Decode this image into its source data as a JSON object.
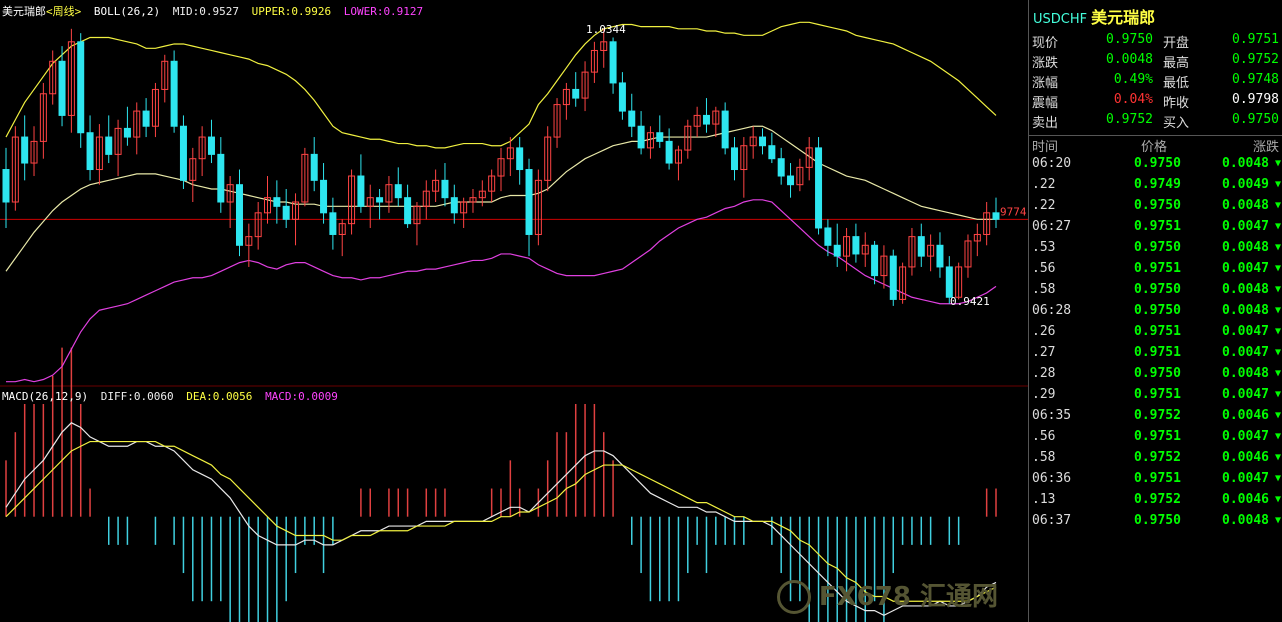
{
  "colors": {
    "up": "#ff4444",
    "down": "#2ee6f0",
    "mid": "#e8e8a8",
    "upper": "#f0f040",
    "lower": "#e040e0",
    "diff": "#e8e8e8",
    "dea": "#f0f040",
    "macd_pos": "#e04040",
    "macd_neg": "#40d0e0"
  },
  "header_main": {
    "symbol": "美元瑞郎",
    "period": "<周线>",
    "boll": "BOLL(26,2)",
    "mid": "MID:0.9527",
    "upper": "UPPER:0.9926",
    "lower": "LOWER:0.9127"
  },
  "header_macd": {
    "name": "MACD(26,12,9)",
    "diff": "DIFF:0.0060",
    "dea": "DEA:0.0056",
    "macd": "MACD:0.0009"
  },
  "annotations": {
    "high": "1.0344",
    "low": "0.9421",
    "last_price": "9774"
  },
  "panel": {
    "code": "USDCHF",
    "name": "美元瑞郎",
    "stats": [
      {
        "l": "现价",
        "v": "0.9750",
        "vc": "#0f0",
        "l2": "开盘",
        "v2": "0.9751",
        "v2c": "#0f0"
      },
      {
        "l": "涨跌",
        "v": "0.0048",
        "vc": "#0f0",
        "l2": "最高",
        "v2": "0.9752",
        "v2c": "#0f0"
      },
      {
        "l": "涨幅",
        "v": "0.49%",
        "vc": "#0f0",
        "l2": "最低",
        "v2": "0.9748",
        "v2c": "#0f0"
      },
      {
        "l": "震幅",
        "v": "0.04%",
        "vc": "#f33",
        "l2": "昨收",
        "v2": "0.9798",
        "v2c": "#fff"
      },
      {
        "l": "卖出",
        "v": "0.9752",
        "vc": "#0f0",
        "l2": "买入",
        "v2": "0.9750",
        "v2c": "#0f0"
      }
    ],
    "tick_headers": [
      "时间",
      "价格",
      "涨跌"
    ],
    "ticks": [
      {
        "t": "06:20",
        "p": "0.9750",
        "c": "0.0048"
      },
      {
        "t": ".22",
        "p": "0.9749",
        "c": "0.0049"
      },
      {
        "t": ".22",
        "p": "0.9750",
        "c": "0.0048"
      },
      {
        "t": "06:27",
        "p": "0.9751",
        "c": "0.0047"
      },
      {
        "t": ".53",
        "p": "0.9750",
        "c": "0.0048"
      },
      {
        "t": ".56",
        "p": "0.9751",
        "c": "0.0047"
      },
      {
        "t": ".58",
        "p": "0.9750",
        "c": "0.0048"
      },
      {
        "t": "06:28",
        "p": "0.9750",
        "c": "0.0048"
      },
      {
        "t": ".26",
        "p": "0.9751",
        "c": "0.0047"
      },
      {
        "t": ".27",
        "p": "0.9751",
        "c": "0.0047"
      },
      {
        "t": ".28",
        "p": "0.9750",
        "c": "0.0048"
      },
      {
        "t": ".29",
        "p": "0.9751",
        "c": "0.0047"
      },
      {
        "t": "06:35",
        "p": "0.9752",
        "c": "0.0046"
      },
      {
        "t": ".56",
        "p": "0.9751",
        "c": "0.0047"
      },
      {
        "t": ".58",
        "p": "0.9752",
        "c": "0.0046"
      },
      {
        "t": "06:36",
        "p": "0.9751",
        "c": "0.0047"
      },
      {
        "t": ".13",
        "p": "0.9752",
        "c": "0.0046"
      },
      {
        "t": "06:37",
        "p": "0.9750",
        "c": "0.0048"
      }
    ],
    "arrow": "▼"
  },
  "watermark": "FX678 汇通网",
  "chart_data": {
    "type": "candlestick",
    "price_range": [
      0.875,
      1.045
    ],
    "macd_range": [
      -0.022,
      0.024
    ],
    "candles": [
      [
        0.975,
        0.985,
        0.948,
        0.96
      ],
      [
        0.96,
        0.995,
        0.956,
        0.99
      ],
      [
        0.99,
        1.0,
        0.97,
        0.978
      ],
      [
        0.978,
        0.995,
        0.972,
        0.988
      ],
      [
        0.988,
        1.015,
        0.98,
        1.01
      ],
      [
        1.01,
        1.03,
        1.005,
        1.025
      ],
      [
        1.025,
        1.032,
        0.995,
        1.0
      ],
      [
        1.0,
        1.04,
        0.992,
        1.034
      ],
      [
        1.034,
        1.038,
        0.985,
        0.992
      ],
      [
        0.992,
        1.0,
        0.97,
        0.975
      ],
      [
        0.975,
        0.996,
        0.968,
        0.99
      ],
      [
        0.99,
        1.0,
        0.978,
        0.982
      ],
      [
        0.982,
        0.998,
        0.972,
        0.994
      ],
      [
        0.994,
        1.004,
        0.986,
        0.99
      ],
      [
        0.99,
        1.006,
        0.982,
        1.002
      ],
      [
        1.002,
        1.008,
        0.99,
        0.995
      ],
      [
        0.995,
        1.015,
        0.99,
        1.012
      ],
      [
        1.012,
        1.028,
        1.006,
        1.025
      ],
      [
        1.025,
        1.03,
        0.992,
        0.995
      ],
      [
        0.995,
        1.0,
        0.966,
        0.97
      ],
      [
        0.97,
        0.985,
        0.96,
        0.98
      ],
      [
        0.98,
        0.995,
        0.972,
        0.99
      ],
      [
        0.99,
        0.998,
        0.978,
        0.982
      ],
      [
        0.982,
        0.99,
        0.955,
        0.96
      ],
      [
        0.96,
        0.972,
        0.948,
        0.968
      ],
      [
        0.968,
        0.975,
        0.935,
        0.94
      ],
      [
        0.94,
        0.95,
        0.93,
        0.944
      ],
      [
        0.944,
        0.96,
        0.938,
        0.955
      ],
      [
        0.955,
        0.972,
        0.95,
        0.962
      ],
      [
        0.962,
        0.97,
        0.95,
        0.958
      ],
      [
        0.958,
        0.966,
        0.948,
        0.952
      ],
      [
        0.952,
        0.964,
        0.94,
        0.96
      ],
      [
        0.96,
        0.985,
        0.958,
        0.982
      ],
      [
        0.982,
        0.99,
        0.965,
        0.97
      ],
      [
        0.97,
        0.978,
        0.95,
        0.955
      ],
      [
        0.955,
        0.962,
        0.938,
        0.945
      ],
      [
        0.945,
        0.952,
        0.935,
        0.95
      ],
      [
        0.95,
        0.975,
        0.945,
        0.972
      ],
      [
        0.972,
        0.982,
        0.955,
        0.958
      ],
      [
        0.958,
        0.968,
        0.948,
        0.962
      ],
      [
        0.962,
        0.966,
        0.952,
        0.96
      ],
      [
        0.96,
        0.972,
        0.955,
        0.968
      ],
      [
        0.968,
        0.976,
        0.958,
        0.962
      ],
      [
        0.962,
        0.968,
        0.948,
        0.95
      ],
      [
        0.95,
        0.96,
        0.94,
        0.958
      ],
      [
        0.958,
        0.97,
        0.952,
        0.965
      ],
      [
        0.965,
        0.975,
        0.96,
        0.97
      ],
      [
        0.97,
        0.978,
        0.958,
        0.962
      ],
      [
        0.962,
        0.968,
        0.95,
        0.955
      ],
      [
        0.955,
        0.962,
        0.948,
        0.96
      ],
      [
        0.96,
        0.966,
        0.955,
        0.962
      ],
      [
        0.962,
        0.97,
        0.958,
        0.965
      ],
      [
        0.965,
        0.975,
        0.96,
        0.972
      ],
      [
        0.972,
        0.985,
        0.965,
        0.98
      ],
      [
        0.98,
        0.99,
        0.972,
        0.985
      ],
      [
        0.985,
        0.99,
        0.968,
        0.975
      ],
      [
        0.975,
        0.98,
        0.935,
        0.945
      ],
      [
        0.945,
        0.975,
        0.94,
        0.97
      ],
      [
        0.97,
        0.995,
        0.965,
        0.99
      ],
      [
        0.99,
        1.008,
        0.985,
        1.005
      ],
      [
        1.005,
        1.015,
        0.998,
        1.012
      ],
      [
        1.012,
        1.02,
        1.004,
        1.008
      ],
      [
        1.008,
        1.025,
        1.002,
        1.02
      ],
      [
        1.02,
        1.034,
        1.015,
        1.03
      ],
      [
        1.03,
        1.04,
        1.022,
        1.034
      ],
      [
        1.034,
        1.036,
        1.01,
        1.015
      ],
      [
        1.015,
        1.02,
        0.998,
        1.002
      ],
      [
        1.002,
        1.01,
        0.99,
        0.995
      ],
      [
        0.995,
        1.002,
        0.982,
        0.985
      ],
      [
        0.985,
        0.995,
        0.98,
        0.992
      ],
      [
        0.992,
        1.0,
        0.985,
        0.988
      ],
      [
        0.988,
        0.994,
        0.975,
        0.978
      ],
      [
        0.978,
        0.986,
        0.97,
        0.984
      ],
      [
        0.984,
        0.998,
        0.98,
        0.995
      ],
      [
        0.995,
        1.004,
        0.99,
        1.0
      ],
      [
        1.0,
        1.008,
        0.992,
        0.996
      ],
      [
        0.996,
        1.004,
        0.99,
        1.002
      ],
      [
        1.002,
        1.006,
        0.982,
        0.985
      ],
      [
        0.985,
        0.99,
        0.97,
        0.975
      ],
      [
        0.975,
        0.99,
        0.962,
        0.986
      ],
      [
        0.986,
        0.995,
        0.98,
        0.99
      ],
      [
        0.99,
        0.994,
        0.982,
        0.986
      ],
      [
        0.986,
        0.992,
        0.978,
        0.98
      ],
      [
        0.98,
        0.985,
        0.968,
        0.972
      ],
      [
        0.972,
        0.978,
        0.962,
        0.968
      ],
      [
        0.968,
        0.98,
        0.965,
        0.976
      ],
      [
        0.976,
        0.99,
        0.97,
        0.985
      ],
      [
        0.985,
        0.99,
        0.945,
        0.948
      ],
      [
        0.948,
        0.952,
        0.935,
        0.94
      ],
      [
        0.94,
        0.95,
        0.93,
        0.935
      ],
      [
        0.935,
        0.948,
        0.928,
        0.944
      ],
      [
        0.944,
        0.95,
        0.932,
        0.936
      ],
      [
        0.936,
        0.946,
        0.93,
        0.94
      ],
      [
        0.94,
        0.942,
        0.922,
        0.926
      ],
      [
        0.926,
        0.94,
        0.92,
        0.935
      ],
      [
        0.935,
        0.938,
        0.912,
        0.915
      ],
      [
        0.915,
        0.932,
        0.913,
        0.93
      ],
      [
        0.93,
        0.948,
        0.926,
        0.944
      ],
      [
        0.944,
        0.95,
        0.93,
        0.935
      ],
      [
        0.935,
        0.945,
        0.928,
        0.94
      ],
      [
        0.94,
        0.946,
        0.925,
        0.93
      ],
      [
        0.93,
        0.935,
        0.913,
        0.916
      ],
      [
        0.916,
        0.932,
        0.915,
        0.93
      ],
      [
        0.93,
        0.945,
        0.925,
        0.942
      ],
      [
        0.942,
        0.95,
        0.935,
        0.945
      ],
      [
        0.945,
        0.96,
        0.94,
        0.955
      ],
      [
        0.955,
        0.962,
        0.948,
        0.952
      ]
    ],
    "mid": [
      0.928,
      0.934,
      0.94,
      0.946,
      0.951,
      0.956,
      0.96,
      0.963,
      0.966,
      0.968,
      0.969,
      0.97,
      0.971,
      0.972,
      0.973,
      0.973,
      0.973,
      0.972,
      0.971,
      0.97,
      0.968,
      0.967,
      0.966,
      0.966,
      0.965,
      0.964,
      0.963,
      0.962,
      0.961,
      0.96,
      0.96,
      0.959,
      0.959,
      0.959,
      0.958,
      0.958,
      0.958,
      0.958,
      0.958,
      0.958,
      0.958,
      0.958,
      0.958,
      0.958,
      0.958,
      0.958,
      0.958,
      0.959,
      0.96,
      0.96,
      0.96,
      0.96,
      0.96,
      0.962,
      0.963,
      0.963,
      0.963,
      0.964,
      0.966,
      0.97,
      0.974,
      0.977,
      0.98,
      0.982,
      0.984,
      0.986,
      0.987,
      0.988,
      0.988,
      0.989,
      0.99,
      0.99,
      0.99,
      0.99,
      0.99,
      0.99,
      0.991,
      0.992,
      0.993,
      0.994,
      0.995,
      0.995,
      0.993,
      0.99,
      0.987,
      0.984,
      0.981,
      0.978,
      0.976,
      0.974,
      0.972,
      0.971,
      0.97,
      0.968,
      0.966,
      0.964,
      0.962,
      0.96,
      0.958,
      0.957,
      0.956,
      0.955,
      0.954,
      0.953,
      0.952,
      0.952,
      0.952
    ],
    "upper": [
      0.99,
      0.998,
      1.006,
      1.012,
      1.018,
      1.024,
      1.028,
      1.032,
      1.034,
      1.036,
      1.036,
      1.036,
      1.035,
      1.034,
      1.033,
      1.031,
      1.031,
      1.032,
      1.033,
      1.033,
      1.032,
      1.031,
      1.03,
      1.029,
      1.028,
      1.027,
      1.026,
      1.024,
      1.023,
      1.021,
      1.019,
      1.016,
      1.012,
      1.007,
      1.001,
      0.995,
      0.992,
      0.991,
      0.99,
      0.989,
      0.989,
      0.988,
      0.987,
      0.987,
      0.986,
      0.986,
      0.985,
      0.985,
      0.986,
      0.987,
      0.987,
      0.987,
      0.986,
      0.986,
      0.988,
      0.992,
      0.996,
      1.005,
      1.01,
      1.016,
      1.022,
      1.028,
      1.033,
      1.037,
      1.04,
      1.041,
      1.042,
      1.042,
      1.041,
      1.041,
      1.041,
      1.041,
      1.04,
      1.04,
      1.04,
      1.039,
      1.039,
      1.038,
      1.038,
      1.037,
      1.037,
      1.037,
      1.039,
      1.041,
      1.042,
      1.043,
      1.043,
      1.042,
      1.041,
      1.04,
      1.039,
      1.037,
      1.036,
      1.035,
      1.034,
      1.033,
      1.031,
      1.029,
      1.027,
      1.025,
      1.022,
      1.019,
      1.016,
      1.012,
      1.008,
      1.004,
      1.0
    ],
    "lower": [
      0.877,
      0.877,
      0.878,
      0.877,
      0.878,
      0.88,
      0.884,
      0.892,
      0.9,
      0.906,
      0.91,
      0.911,
      0.912,
      0.913,
      0.915,
      0.917,
      0.919,
      0.921,
      0.923,
      0.924,
      0.925,
      0.925,
      0.926,
      0.928,
      0.93,
      0.932,
      0.933,
      0.932,
      0.93,
      0.929,
      0.931,
      0.932,
      0.932,
      0.93,
      0.928,
      0.926,
      0.925,
      0.925,
      0.924,
      0.925,
      0.925,
      0.926,
      0.927,
      0.928,
      0.928,
      0.929,
      0.929,
      0.93,
      0.931,
      0.932,
      0.933,
      0.933,
      0.934,
      0.936,
      0.936,
      0.935,
      0.934,
      0.931,
      0.929,
      0.927,
      0.926,
      0.926,
      0.926,
      0.926,
      0.927,
      0.928,
      0.929,
      0.932,
      0.935,
      0.938,
      0.942,
      0.945,
      0.948,
      0.95,
      0.952,
      0.953,
      0.955,
      0.957,
      0.958,
      0.96,
      0.961,
      0.961,
      0.96,
      0.956,
      0.952,
      0.948,
      0.944,
      0.94,
      0.937,
      0.935,
      0.932,
      0.929,
      0.926,
      0.924,
      0.922,
      0.92,
      0.918,
      0.916,
      0.915,
      0.914,
      0.913,
      0.913,
      0.913,
      0.914,
      0.916,
      0.918,
      0.921
    ],
    "diff": [
      0.002,
      0.005,
      0.008,
      0.01,
      0.012,
      0.015,
      0.018,
      0.02,
      0.019,
      0.017,
      0.016,
      0.015,
      0.015,
      0.015,
      0.016,
      0.016,
      0.015,
      0.015,
      0.014,
      0.012,
      0.01,
      0.009,
      0.008,
      0.006,
      0.004,
      0.001,
      -0.002,
      -0.004,
      -0.005,
      -0.006,
      -0.006,
      -0.006,
      -0.005,
      -0.005,
      -0.006,
      -0.006,
      -0.005,
      -0.004,
      -0.003,
      -0.003,
      -0.003,
      -0.002,
      -0.002,
      -0.002,
      -0.002,
      -0.001,
      -0.001,
      -0.001,
      -0.001,
      -0.001,
      -0.001,
      -0.001,
      0.0,
      0.001,
      0.002,
      0.002,
      0.001,
      0.003,
      0.005,
      0.007,
      0.009,
      0.011,
      0.013,
      0.014,
      0.014,
      0.013,
      0.011,
      0.009,
      0.007,
      0.005,
      0.004,
      0.003,
      0.002,
      0.002,
      0.002,
      0.001,
      0.001,
      0.0,
      -0.001,
      -0.001,
      -0.001,
      -0.001,
      -0.002,
      -0.004,
      -0.006,
      -0.008,
      -0.01,
      -0.012,
      -0.014,
      -0.016,
      -0.018,
      -0.019,
      -0.02,
      -0.02,
      -0.021,
      -0.02,
      -0.019,
      -0.019,
      -0.019,
      -0.019,
      -0.018,
      -0.019,
      -0.019,
      -0.018,
      -0.017,
      -0.015,
      -0.014
    ],
    "dea": [
      0.0,
      0.002,
      0.004,
      0.006,
      0.008,
      0.01,
      0.012,
      0.014,
      0.015,
      0.016,
      0.016,
      0.016,
      0.016,
      0.016,
      0.016,
      0.016,
      0.016,
      0.015,
      0.015,
      0.014,
      0.013,
      0.012,
      0.011,
      0.009,
      0.008,
      0.006,
      0.004,
      0.002,
      0.0,
      -0.002,
      -0.003,
      -0.004,
      -0.004,
      -0.004,
      -0.004,
      -0.005,
      -0.005,
      -0.004,
      -0.004,
      -0.004,
      -0.003,
      -0.003,
      -0.003,
      -0.003,
      -0.002,
      -0.002,
      -0.002,
      -0.002,
      -0.001,
      -0.001,
      -0.001,
      -0.001,
      -0.001,
      0.0,
      0.0,
      0.001,
      0.001,
      0.002,
      0.003,
      0.004,
      0.006,
      0.007,
      0.009,
      0.01,
      0.011,
      0.011,
      0.011,
      0.01,
      0.009,
      0.008,
      0.007,
      0.006,
      0.005,
      0.004,
      0.003,
      0.003,
      0.002,
      0.001,
      0.0,
      0.0,
      -0.001,
      -0.001,
      -0.001,
      -0.002,
      -0.003,
      -0.005,
      -0.006,
      -0.008,
      -0.01,
      -0.011,
      -0.013,
      -0.014,
      -0.016,
      -0.017,
      -0.017,
      -0.018,
      -0.018,
      -0.018,
      -0.018,
      -0.018,
      -0.018,
      -0.018,
      -0.018,
      -0.018,
      -0.017,
      -0.016,
      -0.015
    ]
  }
}
